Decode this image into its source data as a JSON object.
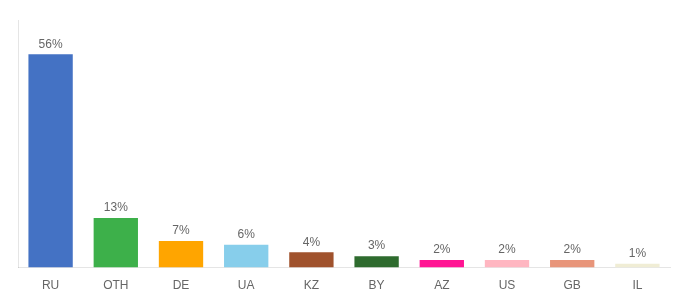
{
  "chart_data": {
    "type": "bar",
    "categories": [
      "RU",
      "OTH",
      "DE",
      "UA",
      "KZ",
      "BY",
      "AZ",
      "US",
      "GB",
      "IL"
    ],
    "values": [
      56,
      13,
      7,
      6,
      4,
      3,
      2,
      2,
      2,
      1
    ],
    "value_labels": [
      "56%",
      "13%",
      "7%",
      "6%",
      "4%",
      "3%",
      "2%",
      "2%",
      "2%",
      "1%"
    ],
    "colors": [
      "#4472C4",
      "#3DB04A",
      "#FFA500",
      "#87CEEB",
      "#A0522D",
      "#2E6B2E",
      "#FF1493",
      "#FFB6C1",
      "#E8957A",
      "#F0EDD5"
    ],
    "ylim": [
      0,
      65
    ],
    "data_labels": true,
    "tick_labels": "x",
    "grid": false
  }
}
